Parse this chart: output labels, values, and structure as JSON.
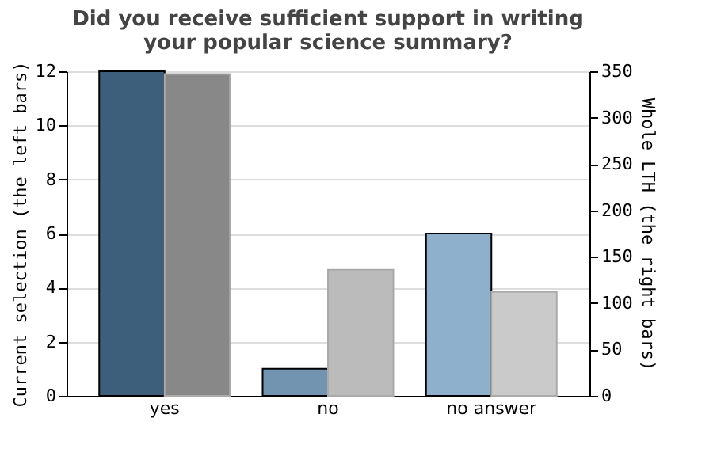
{
  "chart_data": {
    "type": "bar",
    "title": "Did you receive sufficient support in writing\nyour popular science summary?",
    "categories": [
      "yes",
      "no",
      "no answer"
    ],
    "ylabel": "Current selection (the left bars)",
    "y2label": "Whole LTH (the right bars)",
    "series": [
      {
        "colors": [
          "#3e5f7c",
          "#7294b0",
          "#8fb0cc"
        ],
        "values": [
          12,
          1,
          6
        ]
      },
      {
        "colors": [
          "#888888",
          "#bbbbbb",
          "#cacaca"
        ],
        "values": [
          347,
          136,
          112
        ],
        "axis": "y2"
      }
    ],
    "ylim": [
      0,
      12
    ],
    "yticks": [
      0,
      2,
      4,
      6,
      8,
      10,
      12
    ],
    "y2lim": [
      0,
      350
    ],
    "y2ticks": [
      0,
      50,
      100,
      150,
      200,
      250,
      300,
      350
    ],
    "grid": "y"
  }
}
